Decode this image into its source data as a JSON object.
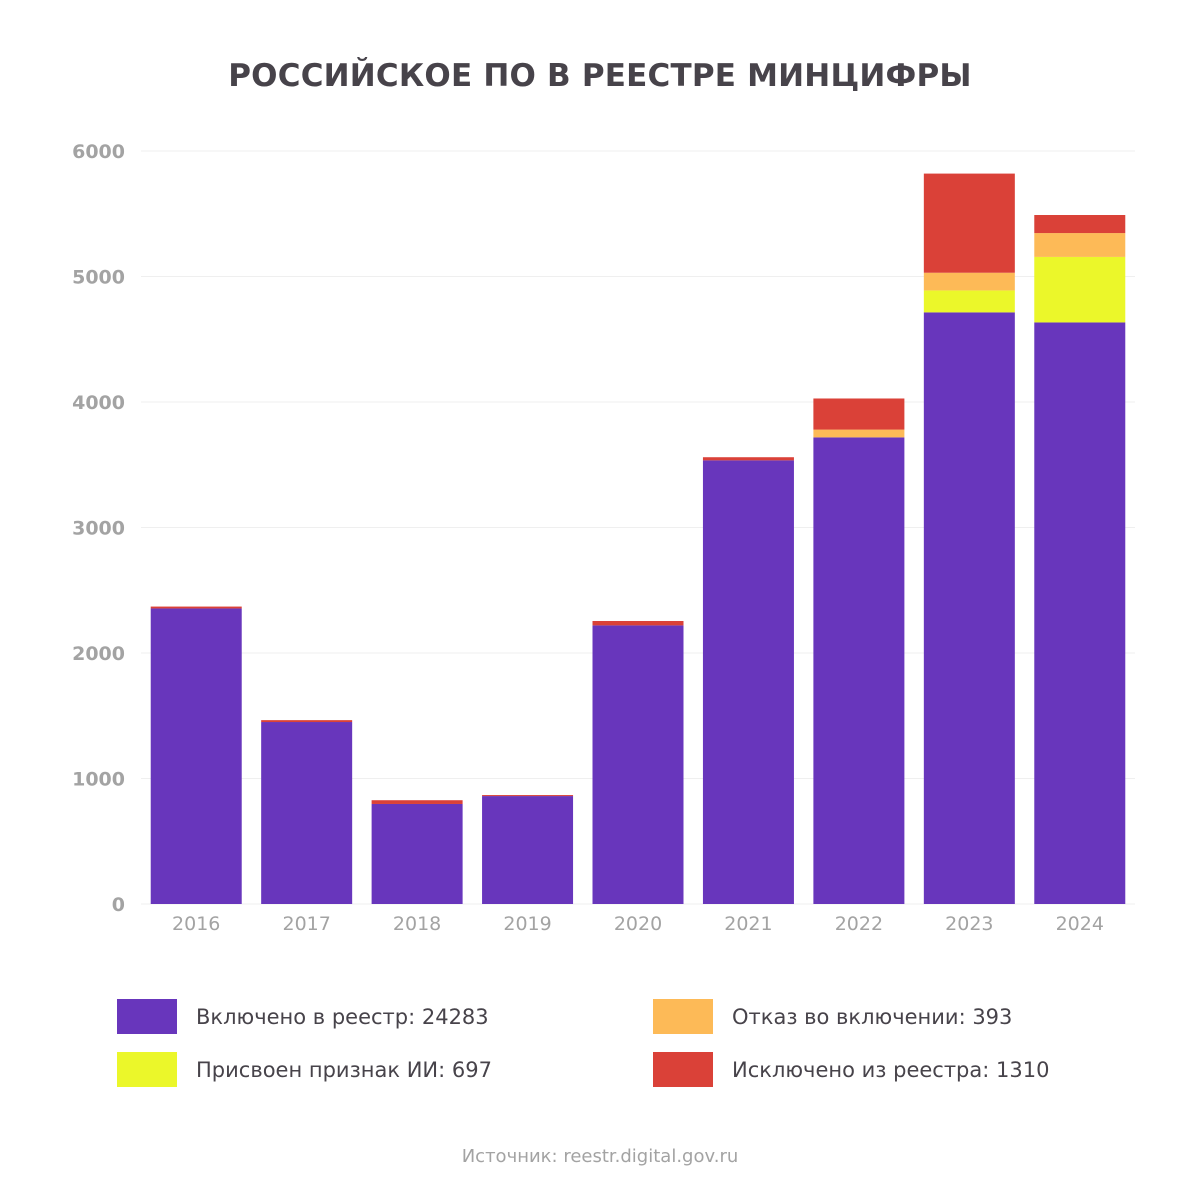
{
  "chart_data": {
    "type": "bar",
    "stacked": true,
    "title": "РОССИЙСКОЕ ПО В РЕЕСТРЕ МИНЦИФРЫ",
    "xlabel": "",
    "ylabel": "",
    "ylim": [
      0,
      6000
    ],
    "yticks": [
      "0",
      "1000",
      "2000",
      "3000",
      "4000",
      "5000",
      "6000"
    ],
    "ytick_values": [
      0,
      1000,
      2000,
      3000,
      4000,
      5000,
      6000
    ],
    "grid": true,
    "categories": [
      "2016",
      "2017",
      "2018",
      "2019",
      "2020",
      "2021",
      "2022",
      "2023",
      "2024"
    ],
    "series": [
      {
        "name": "Включено в реестр",
        "color": "#6836bc",
        "values": [
          2355,
          1450,
          797,
          860,
          2220,
          3535,
          3718,
          4714,
          4634
        ]
      },
      {
        "name": "Присвоен признак ИИ",
        "color": "#ebf72a",
        "values": [
          0,
          0,
          0,
          0,
          0,
          0,
          0,
          175,
          522
        ]
      },
      {
        "name": "Отказ во включении",
        "color": "#fdba57",
        "values": [
          0,
          0,
          0,
          0,
          0,
          0,
          62,
          141,
          190
        ]
      },
      {
        "name": "Исключено из реестра",
        "color": "#da4138",
        "values": [
          15,
          15,
          30,
          8,
          35,
          25,
          248,
          790,
          144
        ]
      }
    ],
    "legend_placement": "bottom",
    "legend": [
      {
        "label": "Включено в реестр: 24283",
        "color": "#6836bc"
      },
      {
        "label": "Отказ во включении: 393",
        "color": "#fdba57"
      },
      {
        "label": "Присвоен признак ИИ: 697",
        "color": "#ebf72a"
      },
      {
        "label": "Исключено из реестра: 1310",
        "color": "#da4138"
      }
    ]
  },
  "source": "Источник: reestr.digital.gov.ru"
}
